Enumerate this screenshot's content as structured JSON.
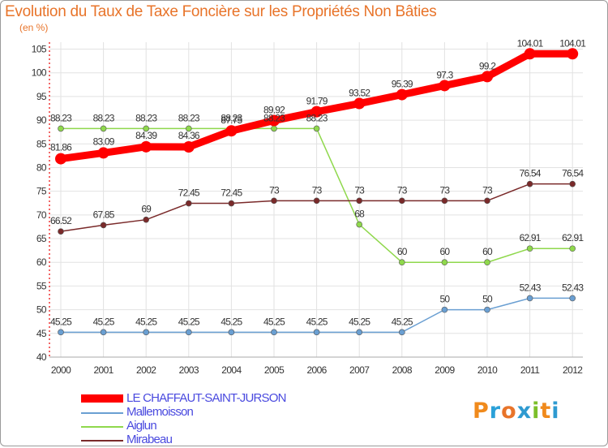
{
  "title": "Evolution du Taux de Taxe Foncière sur les Propriétés Non Bâties",
  "subtitle": "(en %)",
  "logo": {
    "text": "Proxiti",
    "colors": [
      "#f08a1c",
      "#2aa0d8",
      "#e8742a",
      "#2e9ad0",
      "#7bbf2a",
      "#f08a1c",
      "#2e9ad0"
    ]
  },
  "chart_data": {
    "type": "line",
    "categories": [
      "2000",
      "2001",
      "2002",
      "2003",
      "2004",
      "2005",
      "2006",
      "2007",
      "2008",
      "2009",
      "2010",
      "2011",
      "2012"
    ],
    "ylim": [
      40,
      105
    ],
    "yticks": [
      40,
      45,
      50,
      55,
      60,
      65,
      70,
      75,
      80,
      85,
      90,
      95,
      100,
      105
    ],
    "series": [
      {
        "name": "LE CHAFFAUT-SAINT-JURSON",
        "color": "#ff0000",
        "values": [
          81.86,
          83.09,
          84.39,
          84.36,
          87.75,
          89.92,
          91.79,
          93.52,
          95.39,
          97.3,
          99.2,
          104.01,
          104.01
        ],
        "labels": [
          "81.86",
          "83.09",
          "84.39",
          "84.36",
          "87.75",
          "89.92",
          "91.79",
          "93.52",
          "95.39",
          "97.3",
          "99.2",
          "104.01",
          "104.01"
        ]
      },
      {
        "name": "Mallemoisson",
        "color": "#6a9fd2",
        "values": [
          45.25,
          45.25,
          45.25,
          45.25,
          45.25,
          45.25,
          45.25,
          45.25,
          45.25,
          50,
          50,
          52.43,
          52.43
        ],
        "labels": [
          "45.25",
          "45.25",
          "45.25",
          "45.25",
          "45.25",
          "45.25",
          "45.25",
          "45.25",
          "45.25",
          "50",
          "50",
          "52.43",
          "52.43"
        ]
      },
      {
        "name": "Aiglun",
        "color": "#8fd84c",
        "values": [
          88.23,
          88.23,
          88.23,
          88.23,
          88.23,
          88.23,
          88.23,
          68,
          60,
          60,
          60,
          62.91,
          62.91
        ],
        "labels": [
          "88.23",
          "88.23",
          "88.23",
          "88.23",
          "88.23",
          "88.23",
          "88.23",
          "68",
          "60",
          "60",
          "60",
          "62.91",
          "62.91"
        ]
      },
      {
        "name": "Mirabeau",
        "color": "#7a2a2a",
        "values": [
          66.52,
          67.85,
          69,
          72.45,
          72.45,
          73,
          73,
          73,
          73,
          73,
          73,
          76.54,
          76.54
        ],
        "labels": [
          "66.52",
          "67.85",
          "69",
          "72.45",
          "72.45",
          "73",
          "73",
          "73",
          "73",
          "73",
          "73",
          "76.54",
          "76.54"
        ]
      }
    ]
  }
}
